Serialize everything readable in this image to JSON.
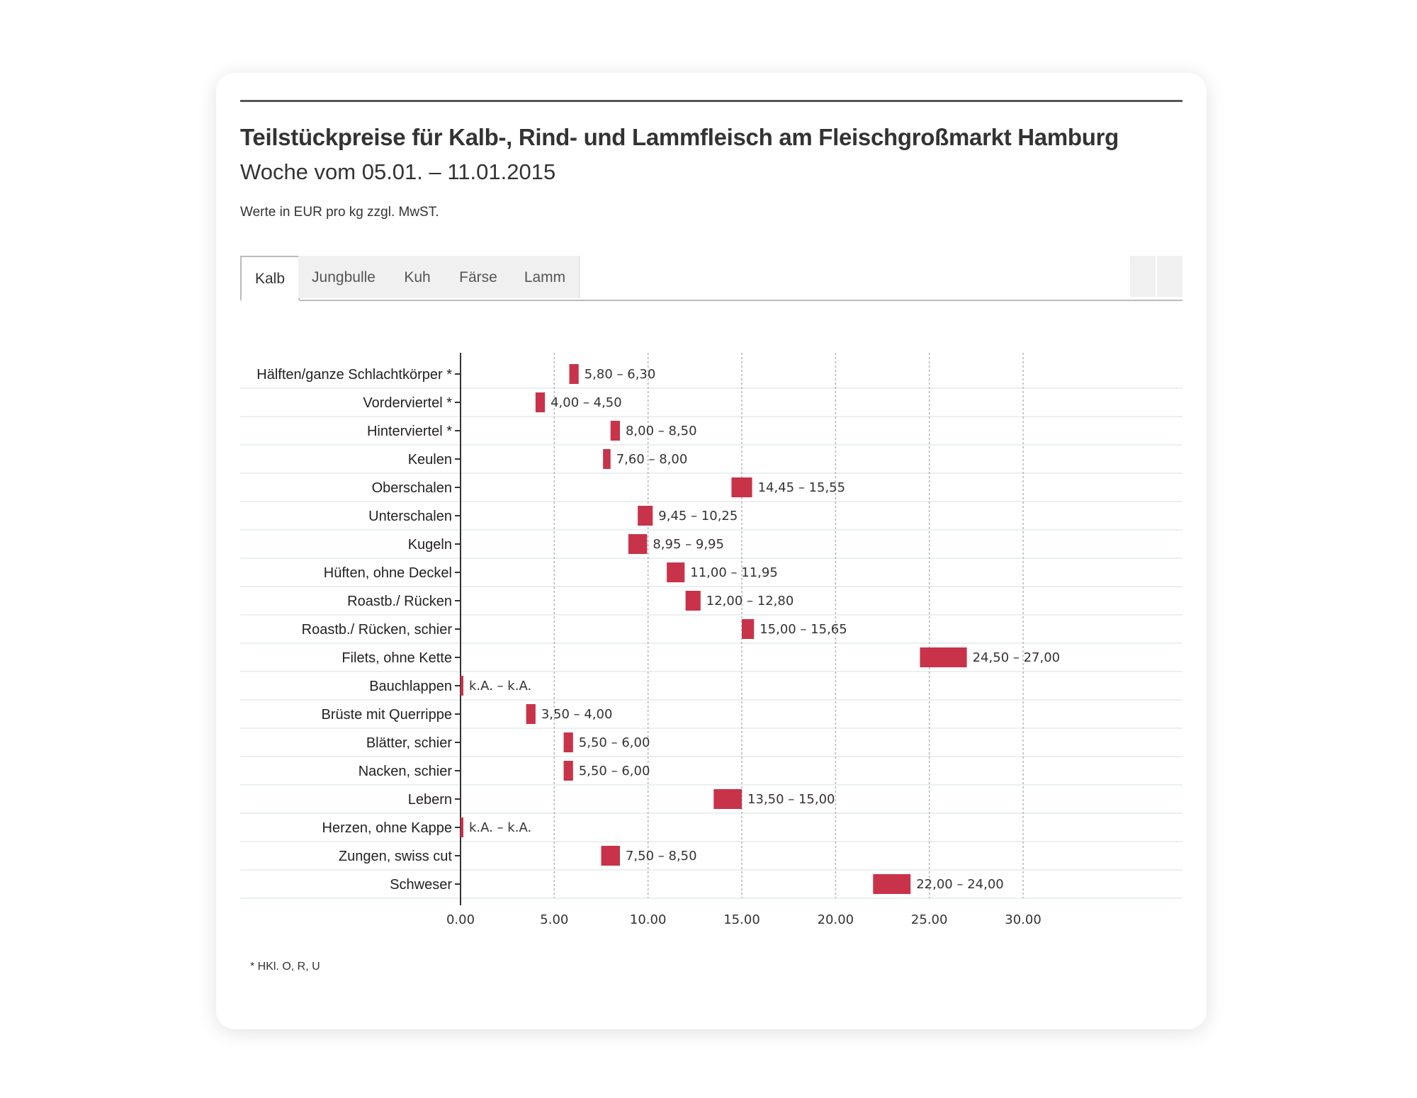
{
  "header": {
    "title": "Teilstückpreise für Kalb-, Rind- und Lammfleisch am Fleischgroßmarkt Hamburg",
    "subtitle": "Woche vom 05.01. – 11.01.2015",
    "note": "Werte in EUR pro kg zzgl. MwST."
  },
  "tabs": [
    {
      "label": "Kalb",
      "active": true
    },
    {
      "label": "Jungbulle",
      "active": false
    },
    {
      "label": "Kuh",
      "active": false
    },
    {
      "label": "Färse",
      "active": false
    },
    {
      "label": "Lamm",
      "active": false
    }
  ],
  "footnote": "*  HKl. O, R, U",
  "colors": {
    "bar": "#c8334a",
    "text": "#333333"
  },
  "chart_data": {
    "type": "bar",
    "orientation": "horizontal-range",
    "categories": [
      "Hälften/ganze Schlachtkörper *",
      "Vorderviertel *",
      "Hinterviertel *",
      "Keulen",
      "Oberschalen",
      "Unterschalen",
      "Kugeln",
      "Hüften, ohne Deckel",
      "Roastb./ Rücken",
      "Roastb./ Rücken, schier",
      "Filets, ohne Kette",
      "Bauchlappen",
      "Brüste mit Querrippe",
      "Blätter, schier",
      "Nacken, schier",
      "Lebern",
      "Herzen, ohne Kappe",
      "Zungen, swiss cut",
      "Schweser"
    ],
    "ranges": [
      [
        5.8,
        6.3
      ],
      [
        4.0,
        4.5
      ],
      [
        8.0,
        8.5
      ],
      [
        7.6,
        8.0
      ],
      [
        14.45,
        15.55
      ],
      [
        9.45,
        10.25
      ],
      [
        8.95,
        9.95
      ],
      [
        11.0,
        11.95
      ],
      [
        12.0,
        12.8
      ],
      [
        15.0,
        15.65
      ],
      [
        24.5,
        27.0
      ],
      [
        null,
        null
      ],
      [
        3.5,
        4.0
      ],
      [
        5.5,
        6.0
      ],
      [
        5.5,
        6.0
      ],
      [
        13.5,
        15.0
      ],
      [
        null,
        null
      ],
      [
        7.5,
        8.5
      ],
      [
        22.0,
        24.0
      ]
    ],
    "labels": [
      "5,80 – 6,30",
      "4,00 – 4,50",
      "8,00 – 8,50",
      "7,60 – 8,00",
      "14,45 – 15,55",
      "9,45 – 10,25",
      "8,95 – 9,95",
      "11,00 – 11,95",
      "12,00 – 12,80",
      "15,00 – 15,65",
      "24,50 – 27,00",
      "k.A. – k.A.",
      "3,50 – 4,00",
      "5,50 – 6,00",
      "5,50 – 6,00",
      "13,50 – 15,00",
      "k.A. – k.A.",
      "7,50 – 8,50",
      "22,00 – 24,00"
    ],
    "xticks": [
      0,
      5,
      10,
      15,
      20,
      25,
      30
    ],
    "xtick_labels": [
      "0.00",
      "5.00",
      "10.00",
      "15.00",
      "20.00",
      "25.00",
      "30.00"
    ],
    "xlim": [
      0,
      38.5
    ],
    "grid": true
  }
}
